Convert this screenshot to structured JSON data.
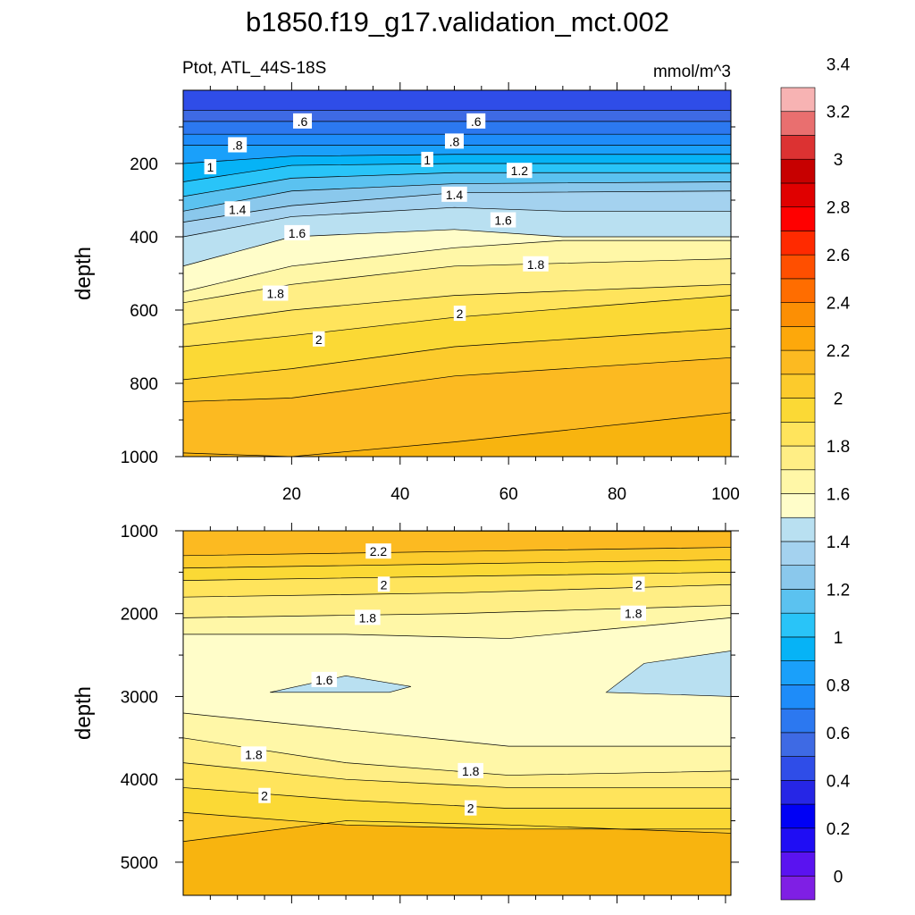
{
  "title": "b1850.f19_g17.validation_mct.002",
  "colors": {
    "levels": [
      "#7f1fe4",
      "#5a13f0",
      "#1f0df4",
      "#0000f5",
      "#2626e6",
      "#2f4de8",
      "#3e6ae4",
      "#2c78f0",
      "#1e8cf9",
      "#1aa0fa",
      "#06b3f6",
      "#29c4f8",
      "#5bc2f0",
      "#8ac8ec",
      "#a4d2ef",
      "#b9e0f1",
      "#fffdc9",
      "#fff7a7",
      "#ffee85",
      "#ffe45c",
      "#fbd935",
      "#fccb2c",
      "#fcba21",
      "#fda80b",
      "#fc8f04",
      "#ff6d00",
      "#ff4f00",
      "#ff2a00",
      "#ff0000",
      "#e00000",
      "#c70000",
      "#dc3232",
      "#e96f6f",
      "#f7b3b3"
    ]
  },
  "chart_data": [
    {
      "type": "contour",
      "panel": "upper",
      "title_left": "Ptot, ATL_44S-18S",
      "units": "mmol/m^3",
      "xlabel": "",
      "ylabel": "depth",
      "xlim": [
        0,
        101
      ],
      "ylim": [
        1000,
        0
      ],
      "xticks": [
        20,
        40,
        60,
        80,
        100
      ],
      "yticks": [
        200,
        400,
        600,
        800,
        1000
      ],
      "levels": [
        0.6,
        0.7,
        0.8,
        0.9,
        1.0,
        1.1,
        1.2,
        1.3,
        1.4,
        1.5,
        1.6,
        1.7,
        1.8,
        1.9,
        2.0,
        2.1,
        2.2,
        2.3
      ],
      "contours": [
        {
          "level": 0.6,
          "x": [
            0,
            101
          ],
          "y": [
            55,
            55
          ]
        },
        {
          "level": 0.7,
          "x": [
            0,
            101
          ],
          "y": [
            85,
            85
          ]
        },
        {
          "level": 0.8,
          "x": [
            0,
            101
          ],
          "y": [
            120,
            120
          ]
        },
        {
          "level": 0.9,
          "x": [
            0,
            101
          ],
          "y": [
            150,
            150
          ]
        },
        {
          "level": 1.0,
          "x": [
            0,
            20,
            50,
            101
          ],
          "y": [
            200,
            180,
            175,
            175
          ]
        },
        {
          "level": 1.1,
          "x": [
            0,
            20,
            50,
            101
          ],
          "y": [
            250,
            205,
            200,
            200
          ]
        },
        {
          "level": 1.2,
          "x": [
            0,
            20,
            50,
            101
          ],
          "y": [
            290,
            240,
            225,
            225
          ]
        },
        {
          "level": 1.3,
          "x": [
            0,
            20,
            50,
            101
          ],
          "y": [
            330,
            275,
            255,
            250
          ]
        },
        {
          "level": 1.4,
          "x": [
            0,
            20,
            50,
            101
          ],
          "y": [
            360,
            315,
            280,
            275
          ]
        },
        {
          "level": 1.5,
          "x": [
            0,
            20,
            50,
            70,
            101
          ],
          "y": [
            400,
            345,
            320,
            330,
            330
          ]
        },
        {
          "level": 1.6,
          "x": [
            0,
            20,
            50,
            70,
            101
          ],
          "y": [
            480,
            400,
            380,
            400,
            400
          ]
        },
        {
          "level": 1.7,
          "x": [
            0,
            20,
            50,
            70,
            101
          ],
          "y": [
            550,
            480,
            430,
            410,
            410
          ]
        },
        {
          "level": 1.8,
          "x": [
            0,
            20,
            50,
            101
          ],
          "y": [
            580,
            530,
            480,
            460
          ]
        },
        {
          "level": 1.9,
          "x": [
            0,
            20,
            50,
            101
          ],
          "y": [
            640,
            600,
            560,
            530
          ]
        },
        {
          "level": 2.0,
          "x": [
            0,
            20,
            50,
            101
          ],
          "y": [
            700,
            670,
            620,
            560
          ]
        },
        {
          "level": 2.1,
          "x": [
            0,
            20,
            50,
            101
          ],
          "y": [
            790,
            760,
            700,
            650
          ]
        },
        {
          "level": 2.2,
          "x": [
            0,
            20,
            50,
            101
          ],
          "y": [
            850,
            840,
            780,
            730
          ]
        },
        {
          "level": 2.3,
          "x": [
            0,
            20,
            50,
            101
          ],
          "y": [
            990,
            1000,
            960,
            880
          ]
        }
      ],
      "labels": [
        {
          "text": ".6",
          "x": 22,
          "y": 85
        },
        {
          "text": ".6",
          "x": 54,
          "y": 85
        },
        {
          "text": ".8",
          "x": 10,
          "y": 150
        },
        {
          "text": ".8",
          "x": 50,
          "y": 140
        },
        {
          "text": "1",
          "x": 5,
          "y": 210
        },
        {
          "text": "1",
          "x": 45,
          "y": 190
        },
        {
          "text": "1.2",
          "x": 62,
          "y": 220
        },
        {
          "text": "1.4",
          "x": 10,
          "y": 325
        },
        {
          "text": "1.4",
          "x": 50,
          "y": 285
        },
        {
          "text": "1.6",
          "x": 21,
          "y": 390
        },
        {
          "text": "1.6",
          "x": 59,
          "y": 355
        },
        {
          "text": "1.8",
          "x": 65,
          "y": 475
        },
        {
          "text": "1.8",
          "x": 17,
          "y": 555
        },
        {
          "text": "2",
          "x": 51,
          "y": 610
        },
        {
          "text": "2",
          "x": 25,
          "y": 680
        }
      ]
    },
    {
      "type": "contour",
      "panel": "lower",
      "xlabel": "",
      "ylabel": "depth",
      "xlim": [
        0,
        101
      ],
      "ylim": [
        5400,
        1000
      ],
      "xticks": [
        20,
        40,
        60,
        80,
        100
      ],
      "yticks": [
        1000,
        2000,
        3000,
        4000,
        5000
      ],
      "levels": [
        1.5,
        1.6,
        1.7,
        1.8,
        1.9,
        2.0,
        2.1,
        2.2,
        2.3
      ],
      "contours": [
        {
          "level": 2.3,
          "x": [
            0,
            101
          ],
          "y": [
            1000,
            1010
          ]
        },
        {
          "level": 2.2,
          "x": [
            0,
            50,
            101
          ],
          "y": [
            1300,
            1250,
            1200
          ]
        },
        {
          "level": 2.1,
          "x": [
            0,
            50,
            101
          ],
          "y": [
            1450,
            1400,
            1350
          ]
        },
        {
          "level": 2.0,
          "x": [
            0,
            50,
            101
          ],
          "y": [
            1600,
            1550,
            1500
          ]
        },
        {
          "level": 1.9,
          "x": [
            0,
            50,
            101
          ],
          "y": [
            1800,
            1750,
            1650
          ]
        },
        {
          "level": 1.8,
          "x": [
            0,
            50,
            101
          ],
          "y": [
            2050,
            2000,
            1900
          ]
        },
        {
          "level": 1.7,
          "x": [
            0,
            30,
            60,
            101
          ],
          "y": [
            2250,
            2250,
            2300,
            2050
          ]
        },
        {
          "level": 1.7,
          "x": [
            0,
            30,
            60,
            101
          ],
          "y": [
            3200,
            3400,
            3600,
            3600
          ]
        },
        {
          "level": 1.8,
          "x": [
            0,
            30,
            60,
            101
          ],
          "y": [
            3500,
            3800,
            3950,
            3900
          ]
        },
        {
          "level": 1.9,
          "x": [
            0,
            30,
            60,
            101
          ],
          "y": [
            3800,
            4000,
            4100,
            4100
          ]
        },
        {
          "level": 2.0,
          "x": [
            0,
            30,
            60,
            101
          ],
          "y": [
            4100,
            4250,
            4350,
            4350
          ]
        },
        {
          "level": 2.1,
          "x": [
            0,
            30,
            60,
            101
          ],
          "y": [
            4400,
            4550,
            4600,
            4600
          ]
        },
        {
          "level": 2.2,
          "x": [
            0,
            30,
            60,
            101
          ],
          "y": [
            4750,
            4500,
            4550,
            4650
          ]
        }
      ],
      "regions": [
        {
          "level": 1.6,
          "x": [
            16,
            30,
            42,
            38,
            25,
            16
          ],
          "y": [
            2950,
            2750,
            2880,
            2950,
            2950,
            2950
          ]
        },
        {
          "level": 1.6,
          "x": [
            78,
            85,
            101,
            101,
            78
          ],
          "y": [
            2950,
            2600,
            2450,
            3000,
            2950
          ]
        }
      ],
      "labels": [
        {
          "text": "2.2",
          "x": 36,
          "y": 1250
        },
        {
          "text": "2",
          "x": 37,
          "y": 1650
        },
        {
          "text": "2",
          "x": 84,
          "y": 1650
        },
        {
          "text": "1.8",
          "x": 34,
          "y": 2050
        },
        {
          "text": "1.8",
          "x": 83,
          "y": 2000
        },
        {
          "text": "1.6",
          "x": 26,
          "y": 2800
        },
        {
          "text": "1.8",
          "x": 13,
          "y": 3700
        },
        {
          "text": "1.8",
          "x": 53,
          "y": 3900
        },
        {
          "text": "2",
          "x": 15,
          "y": 4200
        },
        {
          "text": "2",
          "x": 53,
          "y": 4350
        }
      ]
    },
    {
      "type": "colorbar",
      "min": 0,
      "max": 3.6,
      "step": 0.1,
      "labels": [
        "0",
        "0.2",
        "0.4",
        "0.6",
        "0.8",
        "1",
        "1.2",
        "1.4",
        "1.6",
        "1.8",
        "2",
        "2.2",
        "2.4",
        "2.6",
        "2.8",
        "3",
        "3.2",
        "3.4"
      ]
    }
  ]
}
